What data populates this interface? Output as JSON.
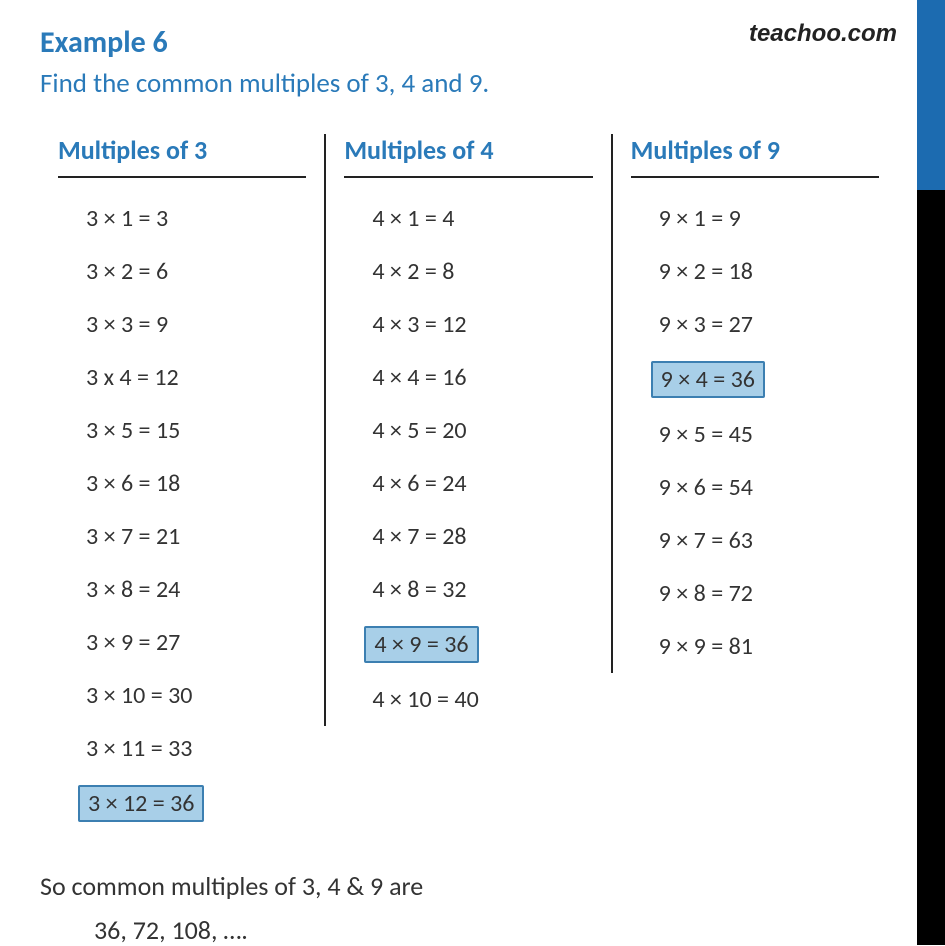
{
  "brand": "teachoo.com",
  "title": "Example 6",
  "question": "Find the common multiples of 3, 4 and 9.",
  "colors": {
    "heading": "#2a7ab9",
    "text": "#333333",
    "highlight_bg": "#a8cfe8",
    "highlight_border": "#3c7fb1",
    "sidebar_blue": "#1c6bb0",
    "sidebar_black": "#000000",
    "background": "#ffffff"
  },
  "fontsizes": {
    "title": 30,
    "question": 27,
    "col_header": 26,
    "row": 24,
    "conclusion": 26
  },
  "columns": [
    {
      "header": "Multiples of 3",
      "rows": [
        {
          "text": "3 × 1 = 3",
          "highlight": false
        },
        {
          "text": "3 × 2 = 6",
          "highlight": false
        },
        {
          "text": "3 × 3 = 9",
          "highlight": false
        },
        {
          "text": "3 x 4 = 12",
          "highlight": false
        },
        {
          "text": "3 × 5 = 15",
          "highlight": false
        },
        {
          "text": "3 × 6 = 18",
          "highlight": false
        },
        {
          "text": "3 × 7 = 21",
          "highlight": false
        },
        {
          "text": "3 × 8 = 24",
          "highlight": false
        },
        {
          "text": "3 × 9 = 27",
          "highlight": false
        },
        {
          "text": "3 × 10 = 30",
          "highlight": false
        },
        {
          "text": "3 × 11 = 33",
          "highlight": false
        },
        {
          "text": "3 × 12 = 36",
          "highlight": true
        }
      ]
    },
    {
      "header": "Multiples of 4",
      "rows": [
        {
          "text": "4 × 1 = 4",
          "highlight": false
        },
        {
          "text": "4 × 2 = 8",
          "highlight": false
        },
        {
          "text": "4 × 3 = 12",
          "highlight": false
        },
        {
          "text": "4 × 4 = 16",
          "highlight": false
        },
        {
          "text": "4 × 5 = 20",
          "highlight": false
        },
        {
          "text": "4 × 6 = 24",
          "highlight": false
        },
        {
          "text": "4 × 7 = 28",
          "highlight": false
        },
        {
          "text": "4 × 8 = 32",
          "highlight": false
        },
        {
          "text": "4 × 9 = 36",
          "highlight": true
        },
        {
          "text": "4 × 10 = 40",
          "highlight": false
        }
      ]
    },
    {
      "header": "Multiples of 9",
      "rows": [
        {
          "text": "9 × 1 = 9",
          "highlight": false
        },
        {
          "text": "9 × 2 = 18",
          "highlight": false
        },
        {
          "text": "9 × 3 = 27",
          "highlight": false
        },
        {
          "text": "9 × 4 = 36",
          "highlight": true
        },
        {
          "text": "9 × 5 = 45",
          "highlight": false
        },
        {
          "text": "9 × 6 = 54",
          "highlight": false
        },
        {
          "text": "9 × 7 = 63",
          "highlight": false
        },
        {
          "text": "9 × 8 = 72",
          "highlight": false
        },
        {
          "text": "9 × 9 = 81",
          "highlight": false
        }
      ]
    }
  ],
  "conclusion": "So common multiples of 3, 4 & 9 are",
  "answer": "36,  72, 108, …."
}
